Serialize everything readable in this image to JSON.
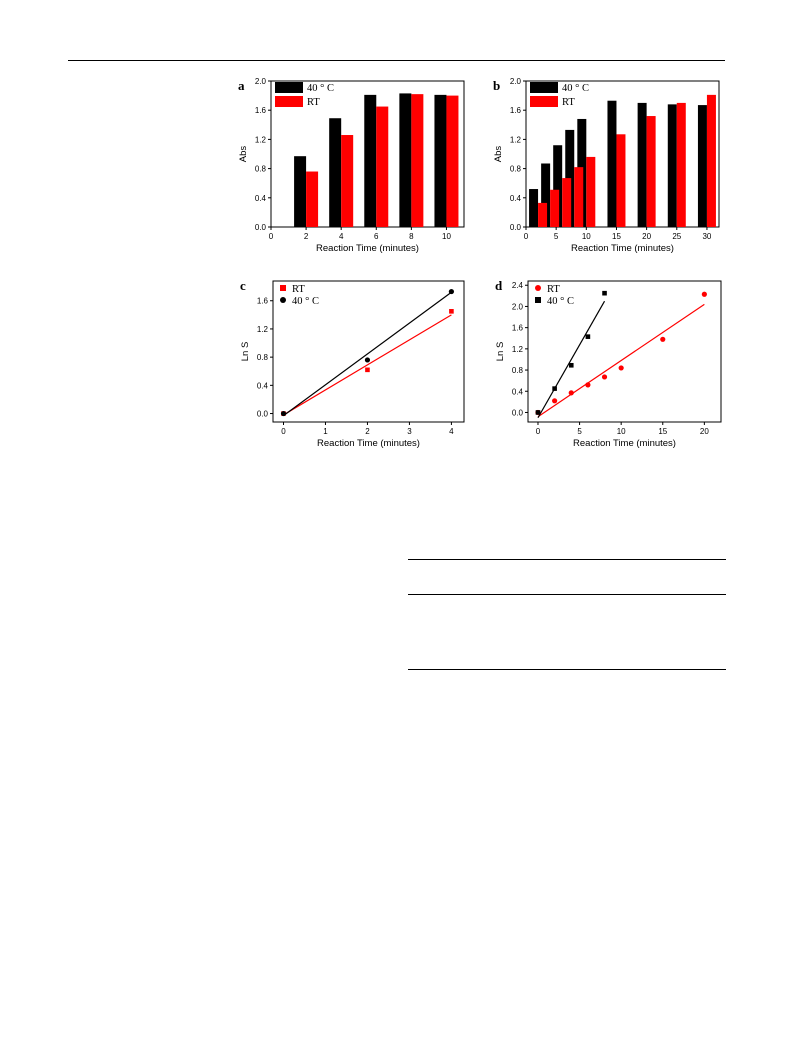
{
  "chart_data": [
    {
      "panel": "a",
      "type": "bar",
      "xlabel": "Reaction Time (minutes)",
      "ylabel": "Abs",
      "xlim": [
        0,
        11
      ],
      "ylim": [
        0,
        2.0
      ],
      "xticks": [
        0,
        2,
        4,
        6,
        8,
        10
      ],
      "yticks": [
        0.0,
        0.4,
        0.8,
        1.2,
        1.6,
        2.0
      ],
      "legend": "top-left",
      "categories": [
        2,
        4,
        6,
        8,
        10
      ],
      "series": [
        {
          "name": "40 ° C",
          "color": "#000000",
          "values": [
            0.97,
            1.49,
            1.81,
            1.83,
            1.81
          ]
        },
        {
          "name": "RT",
          "color": "#ff0000",
          "values": [
            0.76,
            1.26,
            1.65,
            1.82,
            1.8
          ]
        }
      ]
    },
    {
      "panel": "b",
      "type": "bar",
      "xlabel": "Reaction Time (minutes)",
      "ylabel": "Abs",
      "xlim": [
        0,
        32
      ],
      "ylim": [
        0,
        2.0
      ],
      "xticks": [
        0,
        5,
        10,
        15,
        20,
        25,
        30
      ],
      "yticks": [
        0.0,
        0.4,
        0.8,
        1.2,
        1.6,
        2.0
      ],
      "legend": "top-left",
      "categories": [
        2,
        4,
        6,
        8,
        10,
        15,
        20,
        25,
        30
      ],
      "series": [
        {
          "name": "40 ° C",
          "color": "#000000",
          "values": [
            0.52,
            0.87,
            1.12,
            1.33,
            1.48,
            1.73,
            1.7,
            1.68,
            1.67
          ]
        },
        {
          "name": "RT",
          "color": "#ff0000",
          "values": [
            0.33,
            0.51,
            0.67,
            0.82,
            0.96,
            1.27,
            1.52,
            1.7,
            1.81
          ]
        }
      ]
    },
    {
      "panel": "c",
      "type": "scatter",
      "xlabel": "Reaction Time (minutes)",
      "ylabel": "Ln S",
      "xlim": [
        -0.25,
        4.3
      ],
      "ylim": [
        -0.12,
        1.88
      ],
      "xticks": [
        0,
        1,
        2,
        3,
        4
      ],
      "yticks": [
        0.0,
        0.4,
        0.8,
        1.2,
        1.6
      ],
      "legend": "top-left",
      "series": [
        {
          "name": "RT",
          "color": "#ff0000",
          "marker": "square",
          "x": [
            0,
            2,
            4
          ],
          "y": [
            0.0,
            0.62,
            1.45
          ],
          "fit": [
            [
              0,
              -0.02
            ],
            [
              4,
              1.4
            ]
          ]
        },
        {
          "name": "40 ° C",
          "color": "#000000",
          "marker": "circle",
          "x": [
            0,
            2,
            4
          ],
          "y": [
            0.0,
            0.76,
            1.73
          ],
          "fit": [
            [
              0,
              -0.03
            ],
            [
              4,
              1.72
            ]
          ]
        }
      ]
    },
    {
      "panel": "d",
      "type": "scatter",
      "xlabel": "Reaction Time (minutes)",
      "ylabel": "Ln S",
      "xlim": [
        -1.2,
        22
      ],
      "ylim": [
        -0.18,
        2.48
      ],
      "xticks": [
        0,
        5,
        10,
        15,
        20
      ],
      "yticks": [
        0.0,
        0.4,
        0.8,
        1.2,
        1.6,
        2.0,
        2.4
      ],
      "legend": "top-left",
      "series": [
        {
          "name": "RT",
          "color": "#ff0000",
          "marker": "circle",
          "x": [
            0,
            2,
            4,
            6,
            8,
            10,
            15,
            20
          ],
          "y": [
            0.0,
            0.22,
            0.37,
            0.52,
            0.67,
            0.84,
            1.38,
            2.23
          ],
          "fit": [
            [
              0,
              -0.08
            ],
            [
              20,
              2.04
            ]
          ]
        },
        {
          "name": "40 ° C",
          "color": "#000000",
          "marker": "square",
          "x": [
            0,
            2,
            4,
            6,
            8
          ],
          "y": [
            0.0,
            0.45,
            0.89,
            1.43,
            2.25
          ],
          "fit": [
            [
              0,
              -0.1
            ],
            [
              8,
              2.1
            ]
          ]
        }
      ]
    }
  ]
}
